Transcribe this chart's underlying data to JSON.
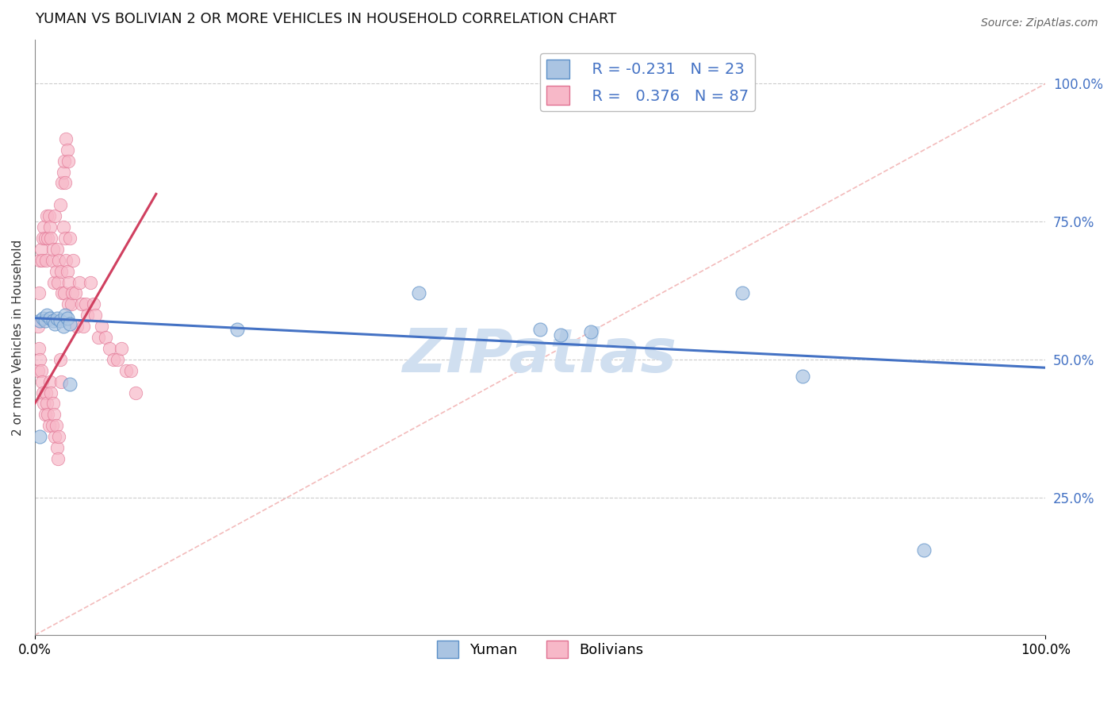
{
  "title": "YUMAN VS BOLIVIAN 2 OR MORE VEHICLES IN HOUSEHOLD CORRELATION CHART",
  "source_text": "Source: ZipAtlas.com",
  "ylabel": "2 or more Vehicles in Household",
  "legend_items": [
    {
      "color": "#aac4e2",
      "edge": "#5588bb",
      "R": "-0.231",
      "N": "23"
    },
    {
      "color": "#f7b8c8",
      "edge": "#e06080",
      "R": " 0.376",
      "N": "87"
    }
  ],
  "legend_labels": [
    "Yuman",
    "Bolivians"
  ],
  "yuman_x": [
    0.005,
    0.008,
    0.01,
    0.012,
    0.015,
    0.018,
    0.02,
    0.022,
    0.025,
    0.028,
    0.03,
    0.032,
    0.035,
    0.2,
    0.38,
    0.5,
    0.52,
    0.55,
    0.7,
    0.76,
    0.88,
    0.005,
    0.035
  ],
  "yuman_y": [
    0.57,
    0.575,
    0.57,
    0.58,
    0.575,
    0.57,
    0.565,
    0.575,
    0.57,
    0.56,
    0.58,
    0.575,
    0.565,
    0.555,
    0.62,
    0.555,
    0.545,
    0.55,
    0.62,
    0.47,
    0.155,
    0.36,
    0.455
  ],
  "bolivian_x": [
    0.003,
    0.004,
    0.005,
    0.006,
    0.007,
    0.008,
    0.009,
    0.01,
    0.011,
    0.012,
    0.013,
    0.014,
    0.015,
    0.016,
    0.017,
    0.018,
    0.019,
    0.02,
    0.021,
    0.022,
    0.023,
    0.024,
    0.025,
    0.026,
    0.027,
    0.028,
    0.029,
    0.03,
    0.031,
    0.032,
    0.033,
    0.034,
    0.035,
    0.036,
    0.037,
    0.038,
    0.04,
    0.042,
    0.044,
    0.046,
    0.048,
    0.05,
    0.052,
    0.055,
    0.058,
    0.06,
    0.063,
    0.066,
    0.07,
    0.074,
    0.078,
    0.082,
    0.086,
    0.09,
    0.095,
    0.1,
    0.003,
    0.004,
    0.005,
    0.006,
    0.007,
    0.008,
    0.009,
    0.01,
    0.011,
    0.012,
    0.013,
    0.014,
    0.015,
    0.016,
    0.017,
    0.018,
    0.019,
    0.02,
    0.021,
    0.022,
    0.023,
    0.024,
    0.025,
    0.026,
    0.027,
    0.028,
    0.029,
    0.03,
    0.031,
    0.032,
    0.033
  ],
  "bolivian_y": [
    0.56,
    0.62,
    0.68,
    0.7,
    0.68,
    0.72,
    0.74,
    0.72,
    0.68,
    0.76,
    0.72,
    0.76,
    0.74,
    0.72,
    0.68,
    0.7,
    0.64,
    0.76,
    0.66,
    0.7,
    0.64,
    0.68,
    0.78,
    0.66,
    0.62,
    0.74,
    0.62,
    0.72,
    0.68,
    0.66,
    0.6,
    0.64,
    0.72,
    0.6,
    0.62,
    0.68,
    0.62,
    0.56,
    0.64,
    0.6,
    0.56,
    0.6,
    0.58,
    0.64,
    0.6,
    0.58,
    0.54,
    0.56,
    0.54,
    0.52,
    0.5,
    0.5,
    0.52,
    0.48,
    0.48,
    0.44,
    0.48,
    0.52,
    0.5,
    0.48,
    0.46,
    0.44,
    0.42,
    0.4,
    0.44,
    0.42,
    0.4,
    0.38,
    0.46,
    0.44,
    0.38,
    0.42,
    0.4,
    0.36,
    0.38,
    0.34,
    0.32,
    0.36,
    0.5,
    0.46,
    0.82,
    0.84,
    0.86,
    0.82,
    0.9,
    0.88,
    0.86
  ],
  "blue_trend": [
    0.0,
    0.575,
    1.0,
    0.485
  ],
  "red_trend": [
    0.0,
    0.42,
    0.12,
    0.8
  ],
  "xlim": [
    0.0,
    1.0
  ],
  "ylim": [
    0.0,
    1.08
  ],
  "yticks": [
    0.25,
    0.5,
    0.75,
    1.0
  ],
  "ytick_labels": [
    "25.0%",
    "50.0%",
    "75.0%",
    "100.0%"
  ],
  "grid_color": "#cccccc",
  "blue_color": "#aac4e2",
  "blue_edge": "#5b8fc7",
  "pink_color": "#f7b8c8",
  "pink_edge": "#e07090",
  "blue_line": "#4472c4",
  "red_line": "#d04060",
  "diag_color": "#f0aaaa",
  "watermark_color": "#d0dff0",
  "title_fontsize": 13,
  "source_fontsize": 10,
  "axis_label_fontsize": 11,
  "tick_fontsize": 12,
  "legend_fontsize": 14
}
